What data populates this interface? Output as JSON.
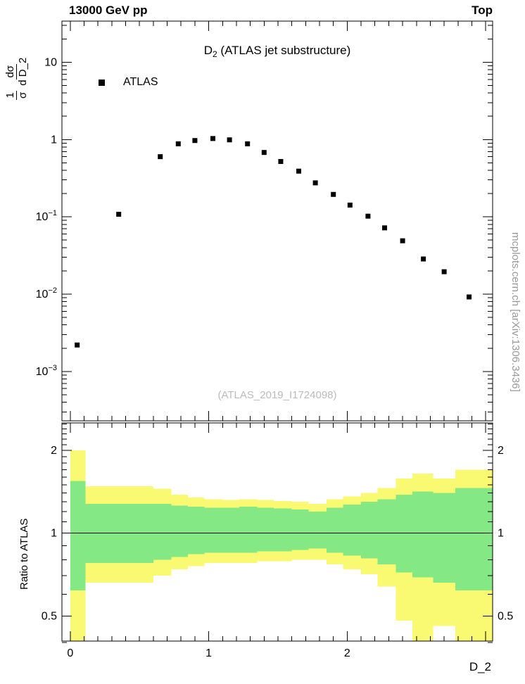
{
  "header": {
    "left": "13000 GeV pp",
    "right": "Top"
  },
  "side_text": "mcplots.cern.ch [arXiv:1306.3436]",
  "main_plot": {
    "title": {
      "base": "D",
      "sub": "2",
      "rest": " (ATLAS jet substructure)"
    },
    "legend": {
      "label": "ATLAS"
    },
    "watermark": "(ATLAS_2019_I1724098)",
    "ylabel": {
      "num1": "1",
      "den1": "σ",
      "num2": "dσ",
      "den2": "d D_2"
    },
    "yticks": [
      {
        "v": 10,
        "base": "10",
        "exp": ""
      },
      {
        "v": 1,
        "base": "1",
        "exp": ""
      },
      {
        "v": 0.1,
        "base": "10",
        "exp": "−1"
      },
      {
        "v": 0.01,
        "base": "10",
        "exp": "−2"
      },
      {
        "v": 0.001,
        "base": "10",
        "exp": "−3"
      }
    ]
  },
  "ratio_plot": {
    "ylabel": "Ratio to ATLAS",
    "yticks": [
      {
        "v": 2,
        "label": "2"
      },
      {
        "v": 1,
        "label": "1"
      },
      {
        "v": 0.5,
        "label": "0.5"
      }
    ],
    "xticks": [
      {
        "v": 0,
        "label": "0"
      },
      {
        "v": 1,
        "label": "1"
      },
      {
        "v": 2,
        "label": "2"
      }
    ],
    "xlabel": "D_2"
  },
  "chart_data": [
    {
      "type": "scatter",
      "title": "D_2 (ATLAS jet substructure)",
      "xlabel": "D_2",
      "ylabel": "1/σ dσ/d D_2",
      "xlim": [
        -0.06,
        3.05
      ],
      "ylim": [
        0.00023,
        34
      ],
      "yscale": "log",
      "legend_position": "top-left",
      "series": [
        {
          "name": "ATLAS",
          "marker": "filled-square",
          "color": "#000000",
          "points": [
            [
              0.05,
              0.0022
            ],
            [
              0.35,
              0.108
            ],
            [
              0.65,
              0.6
            ],
            [
              0.78,
              0.88
            ],
            [
              0.9,
              0.97
            ],
            [
              1.03,
              1.03
            ],
            [
              1.15,
              0.99
            ],
            [
              1.28,
              0.88
            ],
            [
              1.4,
              0.68
            ],
            [
              1.52,
              0.52
            ],
            [
              1.65,
              0.39
            ],
            [
              1.77,
              0.275
            ],
            [
              1.9,
              0.195
            ],
            [
              2.02,
              0.142
            ],
            [
              2.15,
              0.102
            ],
            [
              2.27,
              0.072
            ],
            [
              2.4,
              0.049
            ],
            [
              2.55,
              0.0285
            ],
            [
              2.7,
              0.0195
            ],
            [
              2.88,
              0.0092
            ]
          ]
        }
      ]
    },
    {
      "type": "band-ratio",
      "ylabel": "Ratio to ATLAS",
      "xlim": [
        -0.06,
        3.05
      ],
      "ylim": [
        0.405,
        2.52
      ],
      "yscale": "log",
      "reference_line_y": 1,
      "bands": {
        "outer_color": "#fafa72",
        "inner_color": "#84e884"
      },
      "bins": [
        {
          "x0": 0.0,
          "x1": 0.11,
          "outer": [
            0.4,
            2.0
          ],
          "inner": [
            0.62,
            1.55
          ]
        },
        {
          "x0": 0.11,
          "x1": 0.6,
          "outer": [
            0.66,
            1.48
          ],
          "inner": [
            0.78,
            1.28
          ]
        },
        {
          "x0": 0.6,
          "x1": 0.73,
          "outer": [
            0.7,
            1.45
          ],
          "inner": [
            0.8,
            1.28
          ]
        },
        {
          "x0": 0.73,
          "x1": 0.85,
          "outer": [
            0.74,
            1.38
          ],
          "inner": [
            0.82,
            1.26
          ]
        },
        {
          "x0": 0.85,
          "x1": 0.97,
          "outer": [
            0.76,
            1.35
          ],
          "inner": [
            0.84,
            1.25
          ]
        },
        {
          "x0": 0.97,
          "x1": 1.1,
          "outer": [
            0.78,
            1.33
          ],
          "inner": [
            0.85,
            1.24
          ]
        },
        {
          "x0": 1.1,
          "x1": 1.22,
          "outer": [
            0.78,
            1.32
          ],
          "inner": [
            0.85,
            1.24
          ]
        },
        {
          "x0": 1.22,
          "x1": 1.35,
          "outer": [
            0.78,
            1.33
          ],
          "inner": [
            0.85,
            1.25
          ]
        },
        {
          "x0": 1.35,
          "x1": 1.47,
          "outer": [
            0.79,
            1.32
          ],
          "inner": [
            0.86,
            1.24
          ]
        },
        {
          "x0": 1.47,
          "x1": 1.6,
          "outer": [
            0.79,
            1.31
          ],
          "inner": [
            0.86,
            1.23
          ]
        },
        {
          "x0": 1.6,
          "x1": 1.72,
          "outer": [
            0.8,
            1.3
          ],
          "inner": [
            0.87,
            1.22
          ]
        },
        {
          "x0": 1.72,
          "x1": 1.85,
          "outer": [
            0.8,
            1.28
          ],
          "inner": [
            0.88,
            1.2
          ]
        },
        {
          "x0": 1.85,
          "x1": 1.97,
          "outer": [
            0.77,
            1.33
          ],
          "inner": [
            0.85,
            1.24
          ]
        },
        {
          "x0": 1.97,
          "x1": 2.1,
          "outer": [
            0.74,
            1.36
          ],
          "inner": [
            0.83,
            1.27
          ]
        },
        {
          "x0": 2.1,
          "x1": 2.22,
          "outer": [
            0.71,
            1.4
          ],
          "inner": [
            0.81,
            1.3
          ]
        },
        {
          "x0": 2.22,
          "x1": 2.35,
          "outer": [
            0.64,
            1.46
          ],
          "inner": [
            0.77,
            1.33
          ]
        },
        {
          "x0": 2.35,
          "x1": 2.47,
          "outer": [
            0.48,
            1.58
          ],
          "inner": [
            0.72,
            1.38
          ]
        },
        {
          "x0": 2.47,
          "x1": 2.62,
          "outer": [
            0.4,
            1.65
          ],
          "inner": [
            0.69,
            1.42
          ]
        },
        {
          "x0": 2.62,
          "x1": 2.78,
          "outer": [
            0.46,
            1.58
          ],
          "inner": [
            0.66,
            1.4
          ]
        },
        {
          "x0": 2.78,
          "x1": 3.05,
          "outer": [
            0.4,
            1.7
          ],
          "inner": [
            0.62,
            1.46
          ]
        }
      ]
    }
  ]
}
